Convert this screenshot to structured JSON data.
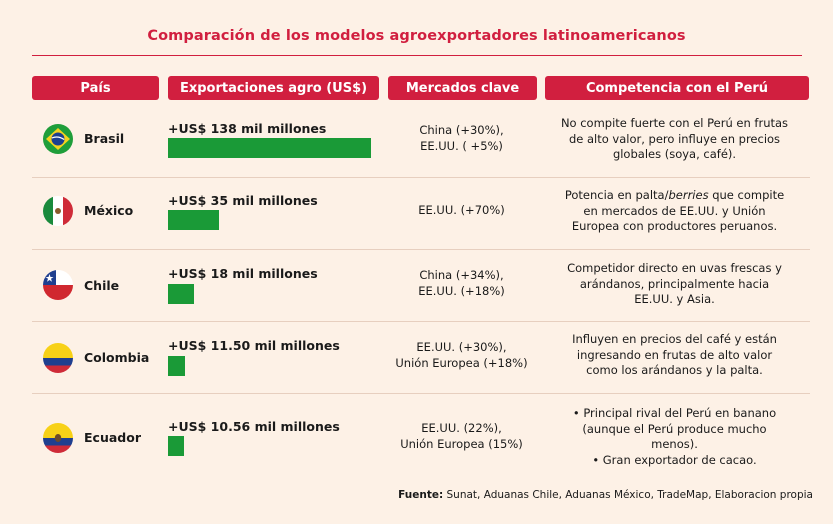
{
  "title": "Comparación de los modelos agroexportadores latinoamericanos",
  "headers": {
    "country": "País",
    "exports": "Exportaciones agro (US$)",
    "markets": "Mercados clave",
    "competition": "Competencia con el Perú"
  },
  "colors": {
    "accent": "#d11f3f",
    "bar": "#1a9a37",
    "background": "#fdf1e6"
  },
  "chart_data": {
    "type": "bar",
    "categories": [
      "Brasil",
      "México",
      "Chile",
      "Colombia",
      "Ecuador"
    ],
    "values": [
      138,
      35,
      18,
      11.5,
      10.56
    ],
    "unit": "mil millones US$"
  },
  "rows": [
    {
      "flag_icon": "brazil-flag-icon",
      "country": "Brasil",
      "amount": "+US$ 138 mil millones",
      "value": 138,
      "markets_1": "China (+30%),",
      "markets_2": "EE.UU. ( +5%)",
      "comp_1": "No compite fuerte con el Perú en frutas",
      "comp_2": "de alto valor, pero influye en precios",
      "comp_3": "globales (soya, café)."
    },
    {
      "flag_icon": "mexico-flag-icon",
      "country": "México",
      "amount": "+US$ 35 mil millones",
      "value": 35,
      "markets_1": "EE.UU. (+70%)",
      "comp_1a": "Potencia en palta/",
      "comp_1b": "berries",
      "comp_1c": " que compite",
      "comp_2": "en mercados de EE.UU. y Unión",
      "comp_3": "Europea con productores peruanos."
    },
    {
      "flag_icon": "chile-flag-icon",
      "country": "Chile",
      "amount": "+US$ 18 mil millones",
      "value": 18,
      "markets_1": "China (+34%),",
      "markets_2": "EE.UU. (+18%)",
      "comp_1": "Competidor directo en uvas frescas y",
      "comp_2": "arándanos, principalmente hacia",
      "comp_3": "EE.UU. y Asia."
    },
    {
      "flag_icon": "colombia-flag-icon",
      "country": "Colombia",
      "amount": "+US$ 11.50 mil millones",
      "value": 11.5,
      "markets_1": "EE.UU. (+30%),",
      "markets_2": "Unión Europea (+18%)",
      "comp_1": "Influyen en precios del café y están",
      "comp_2": "ingresando en frutas de alto valor",
      "comp_3": "como los arándanos y la palta."
    },
    {
      "flag_icon": "ecuador-flag-icon",
      "country": "Ecuador",
      "amount": "+US$ 10.56 mil millones",
      "value": 10.56,
      "markets_1": "EE.UU. (22%),",
      "markets_2": "Unión Europea (15%)",
      "comp_1": "• Principal rival del Perú en banano",
      "comp_2": "(aunque el Perú produce mucho",
      "comp_3": "menos).",
      "comp_4": "• Gran exportador de cacao."
    }
  ],
  "source": {
    "label": "Fuente:",
    "text": " Sunat, Aduanas Chile, Aduanas México, TradeMap, Elaboracion propia"
  }
}
